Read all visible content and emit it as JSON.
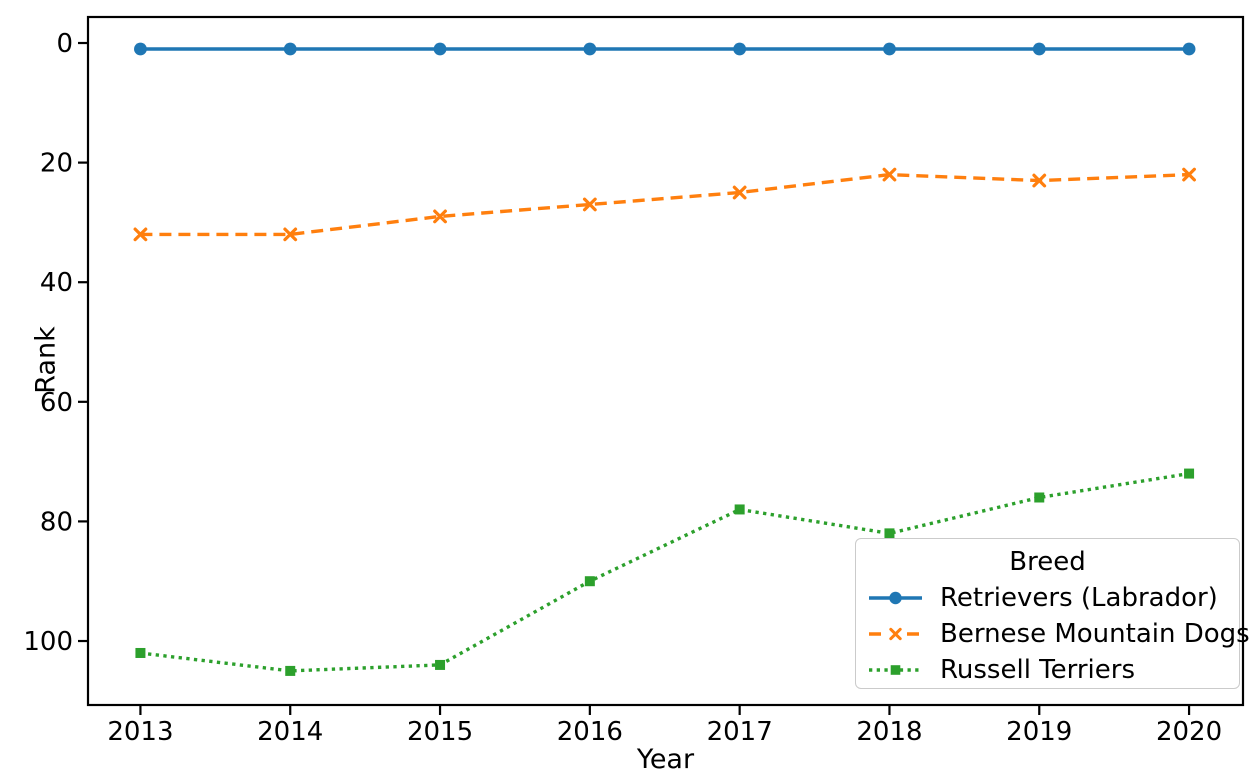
{
  "chart_data": {
    "type": "line",
    "title": "",
    "xlabel": "Year",
    "ylabel": "Rank",
    "x": [
      2013,
      2014,
      2015,
      2016,
      2017,
      2018,
      2019,
      2020
    ],
    "x_tick_labels": [
      "2013",
      "2014",
      "2015",
      "2016",
      "2017",
      "2018",
      "2019",
      "2020"
    ],
    "y_tick_values": [
      0,
      20,
      40,
      60,
      80,
      100
    ],
    "y_axis_inverted": true,
    "xlim": [
      2012.65,
      2020.36
    ],
    "ylim_top": -4.35,
    "ylim_bottom": 110.7,
    "grid": false,
    "background": "#ffffff",
    "axis_color": "#000000",
    "legend": {
      "title": "Breed",
      "position": "lower right"
    },
    "series": [
      {
        "name": "Retrievers (Labrador)",
        "color": "#1f77b4",
        "linestyle": "solid",
        "marker": "circle",
        "values": [
          1,
          1,
          1,
          1,
          1,
          1,
          1,
          1
        ]
      },
      {
        "name": "Bernese Mountain Dogs",
        "color": "#ff7f0e",
        "linestyle": "dashed",
        "marker": "x",
        "values": [
          32,
          32,
          29,
          27,
          25,
          22,
          23,
          22
        ]
      },
      {
        "name": "Russell Terriers",
        "color": "#2ca02c",
        "linestyle": "dotted",
        "marker": "square",
        "values": [
          102,
          105,
          104,
          90,
          78,
          82,
          76,
          72
        ]
      }
    ]
  }
}
